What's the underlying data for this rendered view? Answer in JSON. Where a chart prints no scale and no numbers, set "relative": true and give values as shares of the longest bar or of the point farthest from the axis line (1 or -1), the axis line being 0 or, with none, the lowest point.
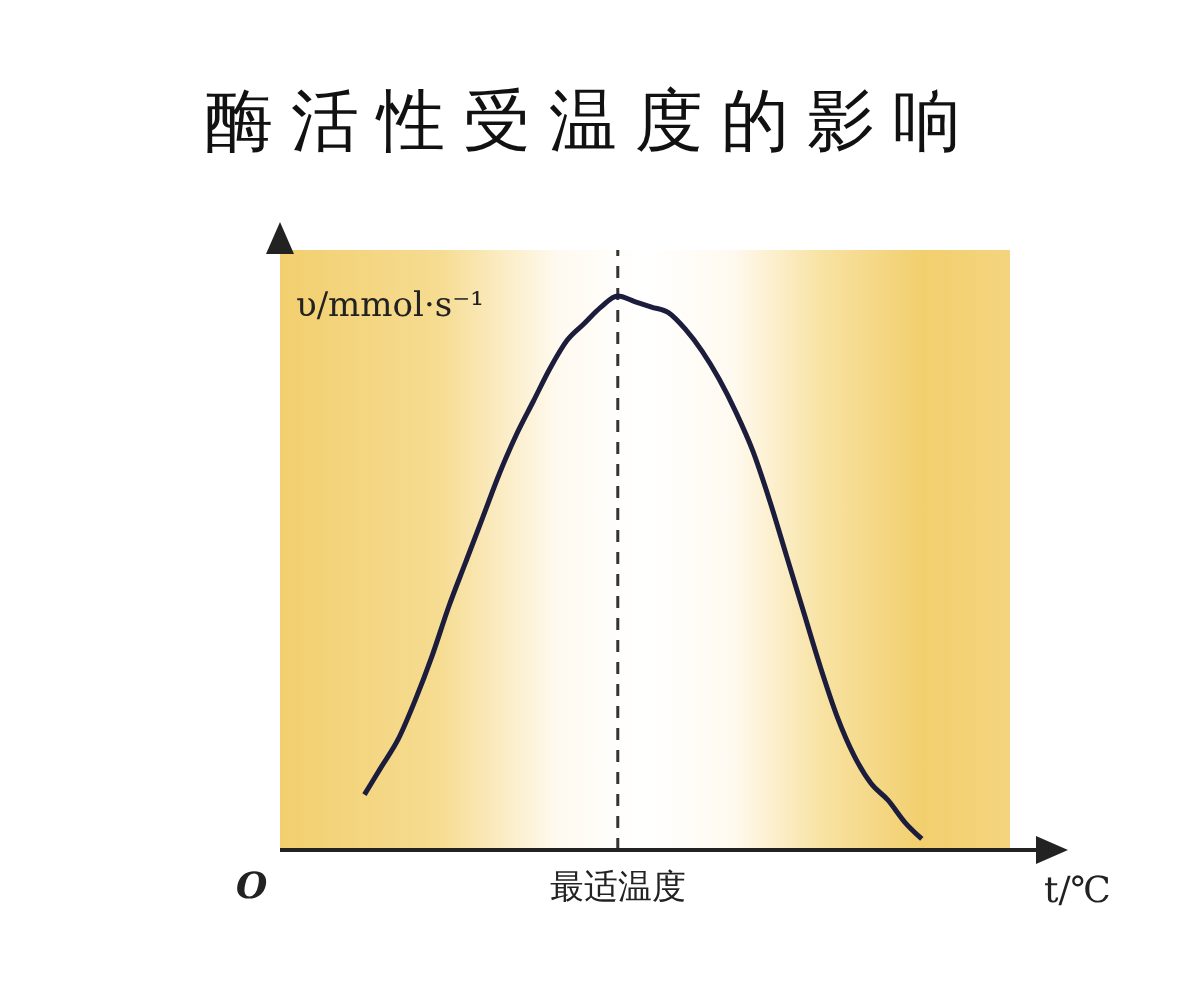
{
  "chart_data": {
    "type": "line",
    "title": "酶活性受温度的影响",
    "xlabel": "t/℃",
    "ylabel": "υ/mmol·s⁻¹",
    "relative": true,
    "marker": "none",
    "line_style": "solid",
    "categories": [
      null,
      null,
      null,
      null,
      null,
      null,
      null,
      null,
      null,
      null,
      null,
      null,
      null,
      null,
      null,
      null,
      null,
      null,
      null,
      null,
      null,
      null,
      null,
      null,
      null,
      null,
      null,
      null,
      null,
      null,
      null,
      null,
      null,
      null,
      null,
      null,
      null,
      null,
      null,
      null,
      null,
      null,
      null,
      null,
      null,
      null
    ],
    "series": [
      {
        "color": "#1c1c3c",
        "values": [
          null,
          null,
          null,
          null,
          null,
          0.1,
          0.15,
          0.2,
          0.27,
          0.35,
          0.44,
          0.52,
          0.6,
          0.68,
          0.75,
          0.81,
          0.87,
          0.92,
          0.95,
          0.98,
          1.0,
          0.99,
          0.98,
          0.97,
          0.94,
          0.9,
          0.85,
          0.79,
          0.72,
          0.63,
          0.53,
          0.43,
          0.33,
          0.24,
          0.17,
          0.12,
          0.09,
          0.05,
          0.02,
          null,
          null,
          null,
          null,
          null,
          null,
          null
        ]
      }
    ],
    "ref_lines": [
      {
        "axis": "x",
        "value": "最适温度",
        "line_style": "dashed",
        "color": "#333333"
      }
    ],
    "annotations": [
      "O"
    ]
  }
}
